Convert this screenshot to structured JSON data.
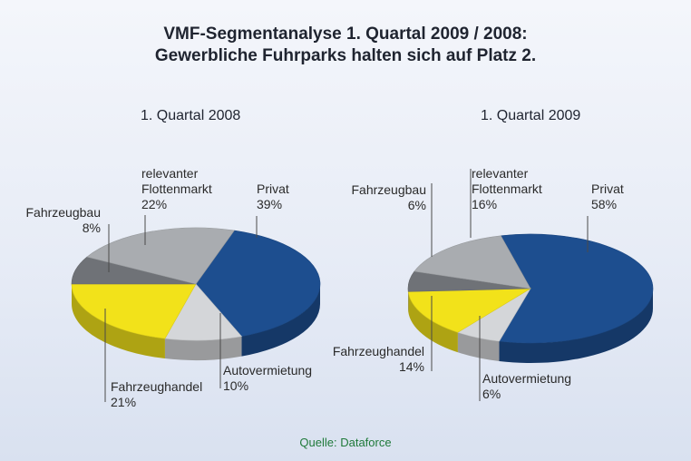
{
  "title": {
    "line1": "VMF-Segmentanalyse 1. Quartal 2009 / 2008:",
    "line2": "Gewerbliche Fuhrparks halten sich auf Platz 2."
  },
  "source": "Quelle: Dataforce",
  "colors": {
    "Privat": "#1d4e8f",
    "Autovermietung": "#d4d6d9",
    "Fahrzeughandel": "#f2e21a",
    "Fahrzeugbau": "#6f7277",
    "relevanter Flottenmarkt": "#a9acb0"
  },
  "chart_data": [
    {
      "type": "pie",
      "title": "1. Quartal 2008",
      "slices": [
        {
          "key": "Privat",
          "line1": "Privat",
          "line2": "",
          "pct": "39%",
          "value": 39
        },
        {
          "key": "Autovermietung",
          "line1": "Autovermietung",
          "line2": "",
          "pct": "10%",
          "value": 10
        },
        {
          "key": "Fahrzeughandel",
          "line1": "Fahrzeughandel",
          "line2": "",
          "pct": "21%",
          "value": 21
        },
        {
          "key": "Fahrzeugbau",
          "line1": "Fahrzeugbau",
          "line2": "",
          "pct": "8%",
          "value": 8
        },
        {
          "key": "relevanter Flottenmarkt",
          "line1": "relevanter",
          "line2": "Flottenmarkt",
          "pct": "22%",
          "value": 22
        }
      ]
    },
    {
      "type": "pie",
      "title": "1. Quartal 2009",
      "slices": [
        {
          "key": "Privat",
          "line1": "Privat",
          "line2": "",
          "pct": "58%",
          "value": 58
        },
        {
          "key": "Autovermietung",
          "line1": "Autovermietung",
          "line2": "",
          "pct": "6%",
          "value": 6
        },
        {
          "key": "Fahrzeughandel",
          "line1": "Fahrzeughandel",
          "line2": "",
          "pct": "14%",
          "value": 14
        },
        {
          "key": "Fahrzeugbau",
          "line1": "Fahrzeugbau",
          "line2": "",
          "pct": "6%",
          "value": 6
        },
        {
          "key": "relevanter Flottenmarkt",
          "line1": "relevanter",
          "line2": "Flottenmarkt",
          "pct": "16%",
          "value": 16
        }
      ]
    }
  ]
}
